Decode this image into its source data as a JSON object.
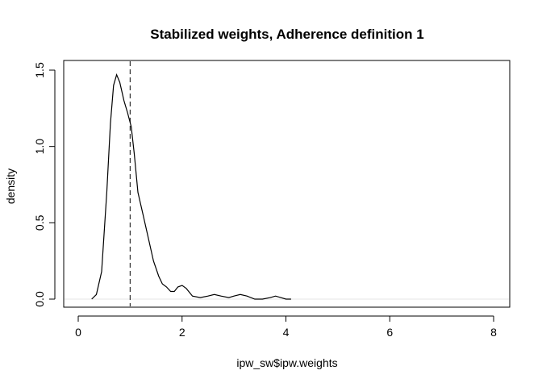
{
  "chart_data": {
    "type": "line",
    "title": "Stabilized weights, Adherence definition 1",
    "xlabel": "ipw_sw$ipw.weights",
    "ylabel": "density",
    "xlim": [
      0,
      8
    ],
    "ylim": [
      0,
      1.5
    ],
    "x_ticks": [
      "0",
      "2",
      "4",
      "6",
      "8"
    ],
    "y_ticks": [
      "0.0",
      "0.5",
      "1.0",
      "1.5"
    ],
    "grid": false,
    "legend": "none",
    "reference_line": {
      "axis": "x",
      "value": 1.0,
      "style": "dashed"
    },
    "zero_line": {
      "axis": "y",
      "value": 0,
      "color": "#cccccc"
    },
    "series": [
      {
        "color": "#000000",
        "x": [
          0.26,
          0.35,
          0.45,
          0.55,
          0.62,
          0.68,
          0.74,
          0.8,
          0.88,
          0.95,
          1.02,
          1.08,
          1.15,
          1.25,
          1.35,
          1.45,
          1.55,
          1.62,
          1.7,
          1.78,
          1.85,
          1.92,
          2.0,
          2.08,
          2.2,
          2.35,
          2.5,
          2.62,
          2.75,
          2.9,
          3.0,
          3.12,
          3.25,
          3.4,
          3.55,
          3.7,
          3.8,
          3.9,
          4.0,
          4.1
        ],
        "y": [
          0.0,
          0.03,
          0.18,
          0.7,
          1.15,
          1.4,
          1.47,
          1.42,
          1.3,
          1.22,
          1.13,
          0.95,
          0.7,
          0.55,
          0.4,
          0.25,
          0.15,
          0.1,
          0.08,
          0.05,
          0.05,
          0.08,
          0.09,
          0.07,
          0.02,
          0.01,
          0.02,
          0.03,
          0.02,
          0.01,
          0.02,
          0.03,
          0.02,
          0.0,
          0.0,
          0.01,
          0.02,
          0.01,
          0.0,
          0.0
        ]
      }
    ]
  }
}
